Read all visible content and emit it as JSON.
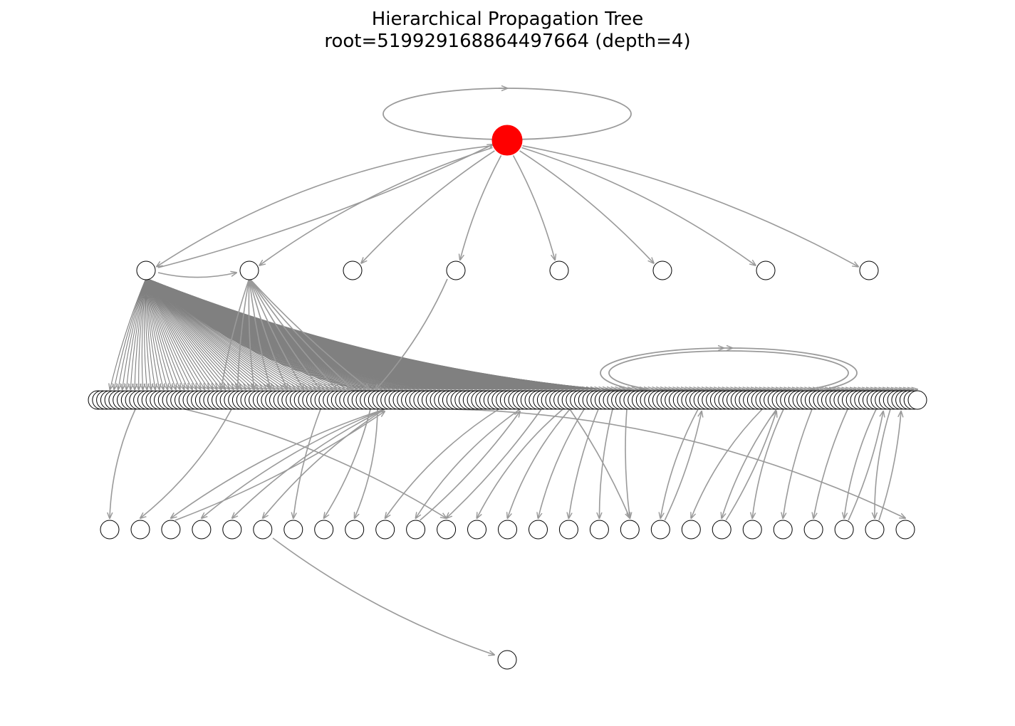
{
  "title": {
    "line1": "Hierarchical Propagation Tree",
    "line2": "root=519929168864497664 (depth=4)"
  },
  "colors": {
    "root_fill": "#ff0000",
    "node_fill": "#ffffff",
    "node_stroke": "#000000",
    "edge": "#9a9a9a",
    "edge_dense": "#808080"
  },
  "tree": {
    "root": "519929168864497664",
    "depth": 4,
    "levels": [
      {
        "depth": 0,
        "node_count": 1
      },
      {
        "depth": 1,
        "node_count": 8
      },
      {
        "depth": 2,
        "node_count": 200
      },
      {
        "depth": 3,
        "node_count": 27
      },
      {
        "depth": 4,
        "node_count": 1
      }
    ],
    "self_loops": [
      "root",
      "depth-2 cluster"
    ]
  }
}
